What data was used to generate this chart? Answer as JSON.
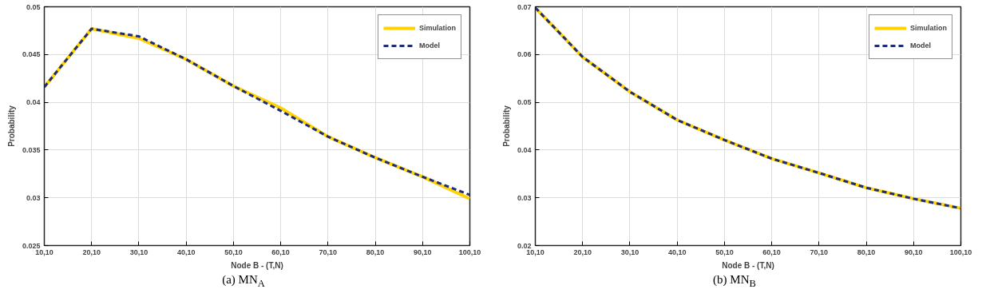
{
  "chart_data": [
    {
      "type": "line",
      "title": "(a) MN$_{A}$",
      "xlabel": "Node B - (T,N)",
      "ylabel": "Probability",
      "categories": [
        "10,10",
        "20,10",
        "30,10",
        "40,10",
        "50,10",
        "60,10",
        "70,10",
        "80,10",
        "90,10",
        "100,10"
      ],
      "series": [
        {
          "name": "Simulation",
          "color": "#ffd200",
          "line_style": "solid",
          "values": [
            0.0416,
            0.0477,
            0.0467,
            0.0445,
            0.0417,
            0.0394,
            0.0364,
            0.0342,
            0.0322,
            0.0299
          ]
        },
        {
          "name": "Model",
          "color": "#1f2d78",
          "line_style": "dashed",
          "values": [
            0.0416,
            0.0477,
            0.0469,
            0.0445,
            0.0417,
            0.0391,
            0.0364,
            0.0342,
            0.0322,
            0.0303
          ]
        }
      ],
      "ylim": [
        0.025,
        0.05
      ],
      "yticks": [
        0.025,
        0.03,
        0.035,
        0.04,
        0.045,
        0.05
      ],
      "grid": true,
      "legend": "top right",
      "marker": "none"
    },
    {
      "type": "line",
      "title": "(b) MN$_{B}$",
      "xlabel": "Node B - (T,N)",
      "ylabel": "Probability",
      "categories": [
        "10,10",
        "20,10",
        "30,10",
        "40,10",
        "50,10",
        "60,10",
        "70,10",
        "80,10",
        "90,10",
        "100,10"
      ],
      "series": [
        {
          "name": "Simulation",
          "color": "#ffd200",
          "line_style": "solid",
          "values": [
            0.0698,
            0.0595,
            0.0522,
            0.0463,
            0.0421,
            0.0382,
            0.0352,
            0.0321,
            0.0298,
            0.0278
          ]
        },
        {
          "name": "Model",
          "color": "#1f2d78",
          "line_style": "dashed",
          "values": [
            0.0698,
            0.0595,
            0.0522,
            0.0463,
            0.0421,
            0.0382,
            0.0352,
            0.0321,
            0.0298,
            0.0278
          ]
        }
      ],
      "ylim": [
        0.02,
        0.07
      ],
      "yticks": [
        0.02,
        0.03,
        0.04,
        0.05,
        0.06,
        0.07
      ],
      "grid": true,
      "legend": "top right",
      "marker": "none"
    }
  ]
}
